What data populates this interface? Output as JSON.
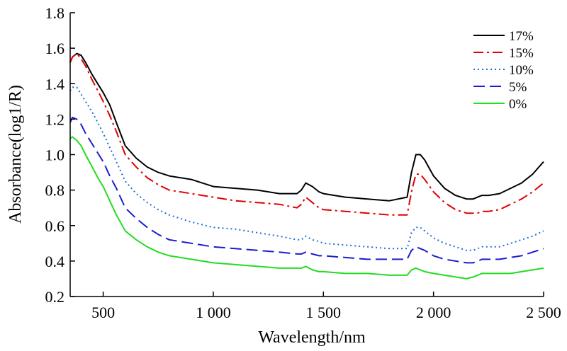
{
  "chart_data": {
    "type": "line",
    "title": "",
    "xlabel": "Wavelength/nm",
    "ylabel": "Absorbance(log1/R)",
    "xlim": [
      350,
      2500
    ],
    "ylim": [
      0.2,
      1.8
    ],
    "x_ticks": [
      500,
      1000,
      1500,
      2000,
      2500
    ],
    "x_tick_labels": [
      "500",
      "1 000",
      "1 500",
      "2 000",
      "2 500"
    ],
    "y_ticks": [
      0.2,
      0.4,
      0.6,
      0.8,
      1.0,
      1.2,
      1.4,
      1.6,
      1.8
    ],
    "y_tick_labels": [
      "0.2",
      "0.4",
      "0.6",
      "0.8",
      "1.0",
      "1.2",
      "1.4",
      "1.6",
      "1.8"
    ],
    "grid": false,
    "legend_position": "top-right",
    "x": [
      350,
      360,
      380,
      400,
      420,
      450,
      480,
      500,
      530,
      560,
      600,
      650,
      700,
      750,
      800,
      900,
      1000,
      1100,
      1200,
      1300,
      1380,
      1400,
      1420,
      1450,
      1480,
      1500,
      1600,
      1700,
      1800,
      1880,
      1900,
      1920,
      1940,
      1960,
      2000,
      2050,
      2100,
      2150,
      2180,
      2200,
      2220,
      2250,
      2300,
      2350,
      2400,
      2450,
      2500
    ],
    "series": [
      {
        "name": "17%",
        "color": "#000000",
        "dash": "",
        "values": [
          1.52,
          1.55,
          1.57,
          1.56,
          1.52,
          1.45,
          1.39,
          1.35,
          1.28,
          1.18,
          1.05,
          0.98,
          0.93,
          0.9,
          0.88,
          0.86,
          0.82,
          0.81,
          0.8,
          0.78,
          0.78,
          0.8,
          0.84,
          0.82,
          0.79,
          0.78,
          0.76,
          0.75,
          0.74,
          0.76,
          0.9,
          1.0,
          1.0,
          0.97,
          0.88,
          0.81,
          0.77,
          0.75,
          0.75,
          0.76,
          0.77,
          0.77,
          0.78,
          0.81,
          0.84,
          0.89,
          0.96
        ]
      },
      {
        "name": "15%",
        "color": "#e00000",
        "dash": "14,5,3,5",
        "values": [
          1.52,
          1.55,
          1.57,
          1.54,
          1.5,
          1.42,
          1.35,
          1.3,
          1.22,
          1.13,
          1.0,
          0.93,
          0.87,
          0.83,
          0.8,
          0.78,
          0.76,
          0.74,
          0.73,
          0.72,
          0.7,
          0.72,
          0.76,
          0.73,
          0.7,
          0.69,
          0.68,
          0.67,
          0.66,
          0.66,
          0.79,
          0.89,
          0.89,
          0.86,
          0.79,
          0.73,
          0.69,
          0.67,
          0.67,
          0.67,
          0.68,
          0.68,
          0.69,
          0.72,
          0.75,
          0.79,
          0.84
        ]
      },
      {
        "name": "10%",
        "color": "#1a6fd6",
        "dash": "2,4",
        "values": [
          1.36,
          1.38,
          1.38,
          1.34,
          1.3,
          1.24,
          1.17,
          1.12,
          1.04,
          0.96,
          0.85,
          0.78,
          0.73,
          0.69,
          0.66,
          0.62,
          0.59,
          0.58,
          0.56,
          0.54,
          0.52,
          0.52,
          0.54,
          0.52,
          0.51,
          0.5,
          0.49,
          0.48,
          0.47,
          0.47,
          0.56,
          0.59,
          0.59,
          0.57,
          0.53,
          0.5,
          0.48,
          0.46,
          0.46,
          0.47,
          0.48,
          0.48,
          0.48,
          0.5,
          0.52,
          0.54,
          0.57
        ]
      },
      {
        "name": "5%",
        "color": "#1c1cd0",
        "dash": "16,7",
        "values": [
          1.18,
          1.21,
          1.2,
          1.17,
          1.12,
          1.06,
          1.0,
          0.96,
          0.88,
          0.81,
          0.7,
          0.64,
          0.59,
          0.55,
          0.52,
          0.5,
          0.48,
          0.47,
          0.46,
          0.45,
          0.44,
          0.44,
          0.45,
          0.44,
          0.43,
          0.43,
          0.42,
          0.41,
          0.41,
          0.41,
          0.46,
          0.48,
          0.47,
          0.46,
          0.43,
          0.41,
          0.4,
          0.39,
          0.39,
          0.4,
          0.41,
          0.41,
          0.41,
          0.42,
          0.43,
          0.45,
          0.47
        ]
      },
      {
        "name": "0%",
        "color": "#22dd22",
        "dash": "",
        "values": [
          1.09,
          1.1,
          1.08,
          1.05,
          1.0,
          0.93,
          0.86,
          0.82,
          0.74,
          0.66,
          0.57,
          0.52,
          0.48,
          0.45,
          0.43,
          0.41,
          0.39,
          0.38,
          0.37,
          0.36,
          0.36,
          0.36,
          0.37,
          0.35,
          0.34,
          0.34,
          0.33,
          0.33,
          0.32,
          0.32,
          0.35,
          0.36,
          0.35,
          0.34,
          0.33,
          0.32,
          0.31,
          0.3,
          0.31,
          0.32,
          0.33,
          0.33,
          0.33,
          0.33,
          0.34,
          0.35,
          0.36
        ]
      }
    ]
  }
}
